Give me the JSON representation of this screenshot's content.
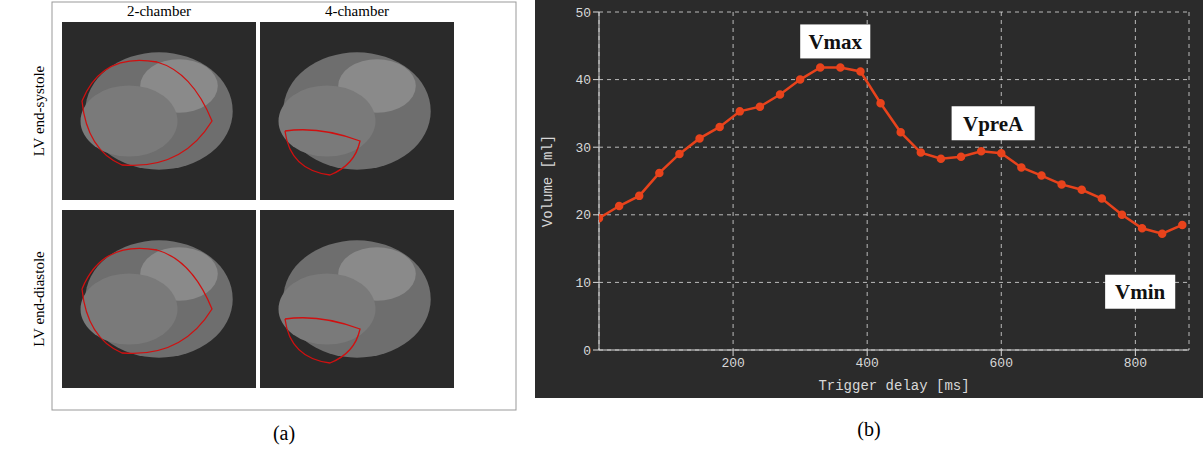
{
  "figure": {
    "panel_a": {
      "label": "(a)",
      "columns": [
        "2-chamber",
        "4-chamber"
      ],
      "rows": [
        "LV end-systole",
        "LV end-diastole"
      ]
    },
    "panel_b": {
      "label": "(b)"
    }
  },
  "chart_data": {
    "type": "line",
    "x_label": "Trigger delay [ms]",
    "y_label": "Volume [ml]",
    "x": [
      0,
      30,
      60,
      90,
      120,
      150,
      180,
      210,
      240,
      270,
      300,
      330,
      360,
      390,
      420,
      450,
      480,
      510,
      540,
      570,
      600,
      630,
      660,
      690,
      720,
      750,
      780,
      810,
      840,
      870
    ],
    "values": [
      19.5,
      21.3,
      22.8,
      26.2,
      29.0,
      31.3,
      33.0,
      35.3,
      36.0,
      37.8,
      40.0,
      41.8,
      41.8,
      41.2,
      36.5,
      32.2,
      29.2,
      28.3,
      28.6,
      29.4,
      29.1,
      27.0,
      25.8,
      24.5,
      23.7,
      22.4,
      20.0,
      18.0,
      17.2,
      18.5
    ],
    "color": "#e8431c",
    "marker": "circle",
    "xlim": [
      0,
      880
    ],
    "xticks": [
      200,
      400,
      600,
      800
    ],
    "ylim": [
      0,
      50
    ],
    "yticks": [
      0,
      10,
      20,
      30,
      40,
      50
    ],
    "grid": true,
    "annotations": [
      {
        "text": "Vmax",
        "x": 330,
        "y": 41.8
      },
      {
        "text": "VpreA",
        "x": 570,
        "y": 29.4
      },
      {
        "text": "Vmin",
        "x": 840,
        "y": 17.2
      }
    ]
  }
}
